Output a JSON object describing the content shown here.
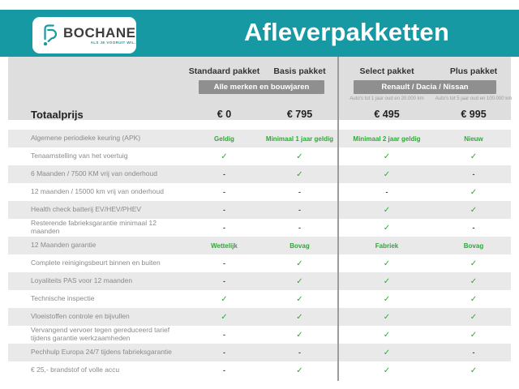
{
  "header": {
    "brand": {
      "name": "BOCHANE",
      "tagline": "ALS JE VOORUIT WIL."
    },
    "title": "Afleverpakketten"
  },
  "table": {
    "totaalprijs_label": "Totaalprijs",
    "columns": [
      {
        "id": "standaard",
        "label": "Standaard pakket",
        "price": "€ 0",
        "note": ""
      },
      {
        "id": "basis",
        "label": "Basis pakket",
        "price": "€ 795",
        "note": ""
      },
      {
        "id": "select",
        "label": "Select pakket",
        "price": "€ 495",
        "note": "Auto's tot 1 jaar oud en 20.000 km"
      },
      {
        "id": "plus",
        "label": "Plus pakket",
        "price": "€ 995",
        "note": "Auto's tot 5 jaar oud en 100.000 km"
      }
    ],
    "group_badges": [
      {
        "label": "Alle merken en bouwjaren",
        "columns": [
          "standaard",
          "basis"
        ]
      },
      {
        "label": "Renault / Dacia / Nissan",
        "columns": [
          "select",
          "plus"
        ]
      }
    ],
    "rows": [
      {
        "label": "Algemene periodieke keuring (APK)",
        "values": [
          "Geldig",
          "Minimaal 1 jaar geldig",
          "Minimaal 2 jaar geldig",
          "Nieuw"
        ]
      },
      {
        "label": "Tenaamstelling van het voertuig",
        "values": [
          "✓",
          "✓",
          "✓",
          "✓"
        ]
      },
      {
        "label": "6 Maanden / 7500 KM vrij van onderhoud",
        "values": [
          "-",
          "✓",
          "✓",
          "-"
        ]
      },
      {
        "label": "12 maanden / 15000 km vrij van onderhoud",
        "values": [
          "-",
          "-",
          "-",
          "✓"
        ]
      },
      {
        "label": "Health check batterij EV/HEV/PHEV",
        "values": [
          "-",
          "-",
          "✓",
          "✓"
        ]
      },
      {
        "label": "Resterende fabrieksgarantie minimaal 12 maanden",
        "values": [
          "-",
          "-",
          "✓",
          "-"
        ]
      },
      {
        "label": "12 Maanden  garantie",
        "values": [
          "Wettelijk",
          "Bovag",
          "Fabriek",
          "Bovag"
        ]
      },
      {
        "label": "Complete reinigingsbeurt binnen en buiten",
        "values": [
          "-",
          "✓",
          "✓",
          "✓"
        ]
      },
      {
        "label": "Loyaliteits PAS voor 12 maanden",
        "values": [
          "-",
          "✓",
          "✓",
          "✓"
        ]
      },
      {
        "label": "Technische inspectie",
        "values": [
          "✓",
          "✓",
          "✓",
          "✓"
        ]
      },
      {
        "label": "Vloeistoffen controle en bijvullen",
        "values": [
          "✓",
          "✓",
          "✓",
          "✓"
        ]
      },
      {
        "label": "Vervangend vervoer tegen gereduceerd tarief tijdens garantie werkzaamheden",
        "values": [
          "-",
          "✓",
          "✓",
          "✓"
        ]
      },
      {
        "label": "Pechhulp Europa 24/7 tijdens fabrieksgarantie",
        "values": [
          "-",
          "-",
          "✓",
          "-"
        ]
      },
      {
        "label": "€ 25,- brandstof of  volle accu",
        "values": [
          "-",
          "✓",
          "✓",
          "✓"
        ]
      }
    ]
  },
  "colors": {
    "teal": "#1799a4",
    "header_gray": "#dedede",
    "stripe_gray": "#e9e9e9",
    "badge_gray": "#8f8f8f",
    "check_green": "#2ea836",
    "divider_gray": "#9c9c9c"
  }
}
